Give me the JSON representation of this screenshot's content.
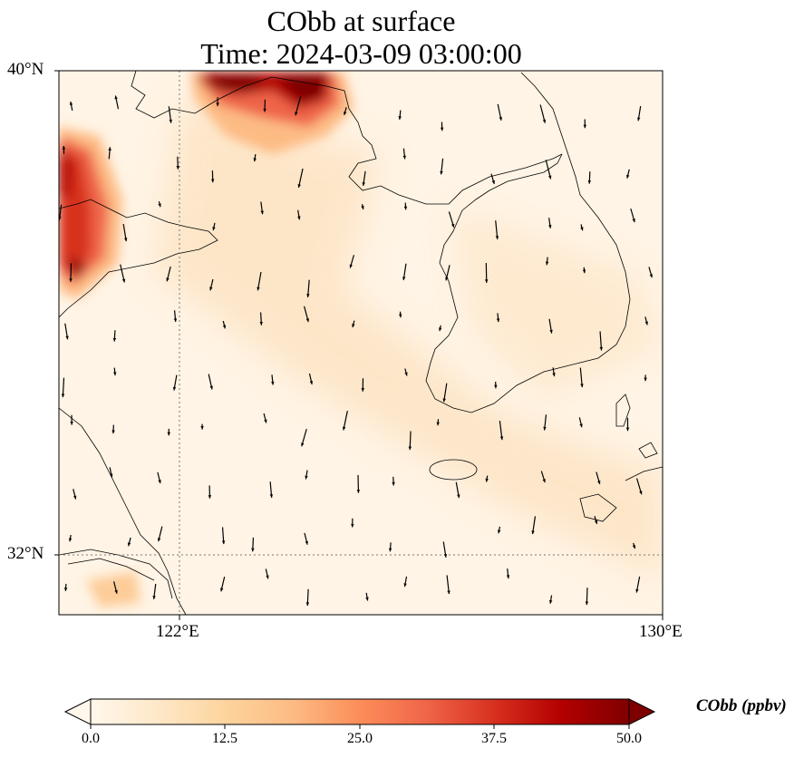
{
  "title": "CObb at surface",
  "subtitle": "Time: 2024-03-09 03:00:00",
  "axes": {
    "lat_ticks": [
      "40°N",
      "32°N"
    ],
    "lon_ticks": [
      "122°E",
      "130°E"
    ]
  },
  "colorbar": {
    "label": "CObb (ppbv)",
    "ticks": [
      "0.0",
      "12.5",
      "25.0",
      "37.5",
      "50.0"
    ],
    "min": 0,
    "max": 50,
    "extend": "both",
    "colormap": [
      "#fff7ec",
      "#fee8c8",
      "#fdd49e",
      "#fdbb84",
      "#fc8d59",
      "#ef6548",
      "#d7301f",
      "#b30000",
      "#7f0000"
    ]
  },
  "map": {
    "lon_range": [
      120,
      130
    ],
    "lat_range": [
      31,
      40
    ],
    "gridlines": "dotted at 122°E and 32°N",
    "plumes": [
      {
        "area": "northern Bohai coast",
        "level": "high",
        "max_ppbv": 50
      },
      {
        "area": "Shandong / western edge",
        "level": "high",
        "max_ppbv": 45
      },
      {
        "area": "Yangtze estuary",
        "level": "low",
        "max_ppbv": 10
      }
    ],
    "wind_vectors": "predominantly southward arrows over Yellow Sea and Korean peninsula"
  }
}
